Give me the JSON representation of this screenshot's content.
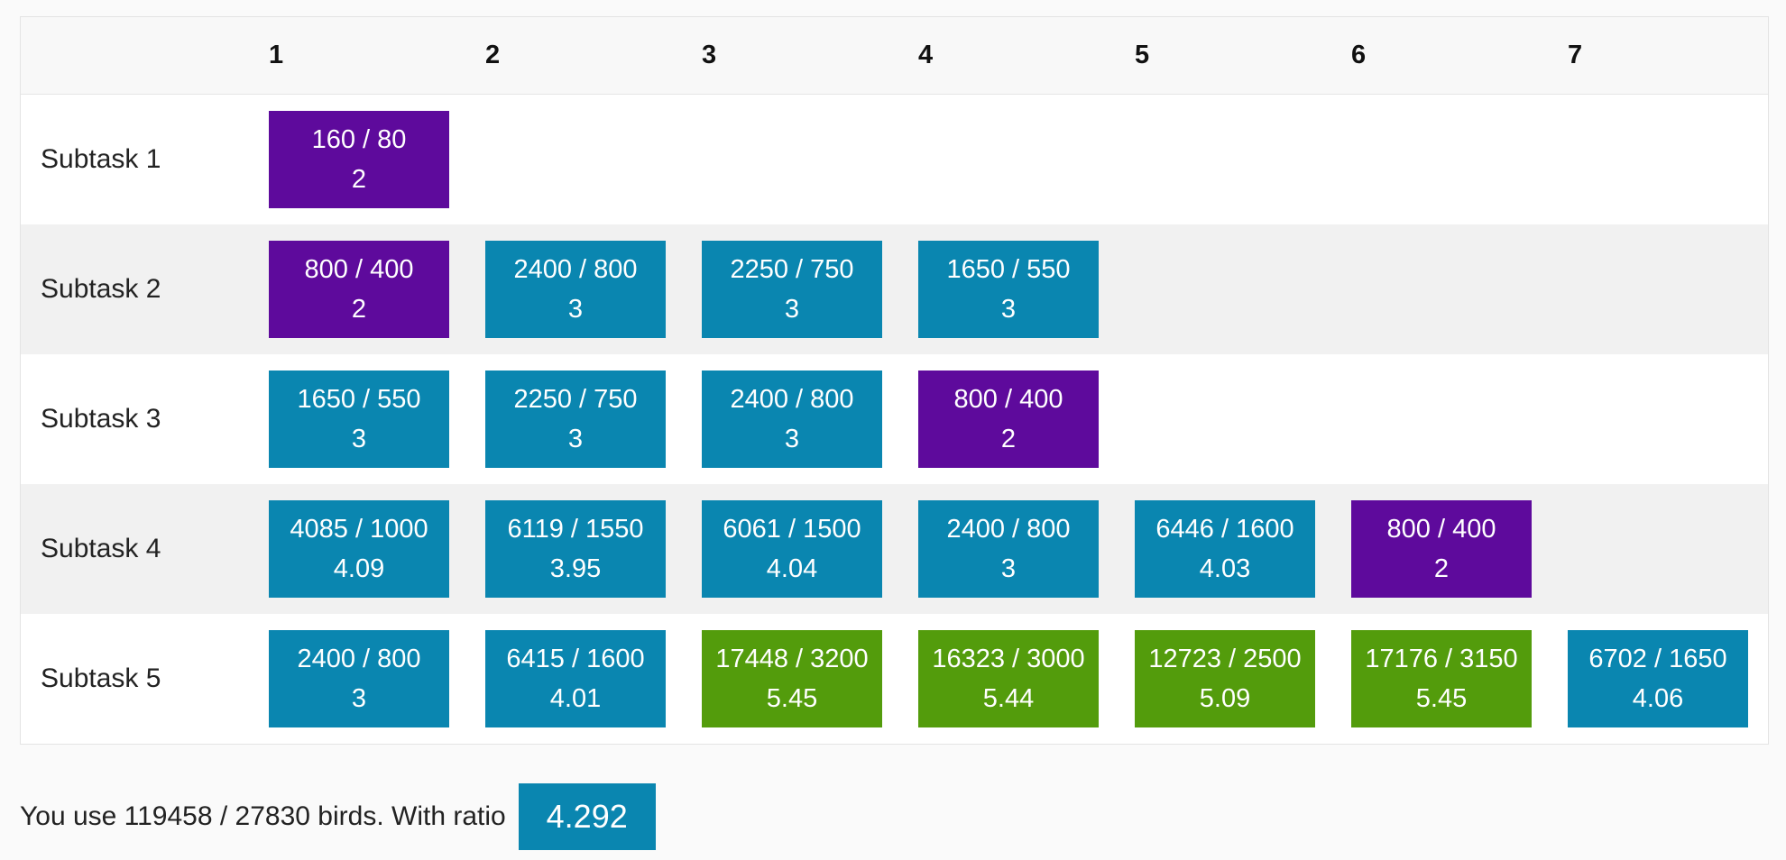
{
  "colors": {
    "purple": "#5e0a9c",
    "blue": "#0a86b0",
    "green": "#539c0c"
  },
  "columns": [
    "1",
    "2",
    "3",
    "4",
    "5",
    "6",
    "7"
  ],
  "subtasks": [
    {
      "label": "Subtask 1",
      "cells": [
        {
          "top": "160 / 80",
          "bottom": "2",
          "color": "purple"
        }
      ]
    },
    {
      "label": "Subtask 2",
      "cells": [
        {
          "top": "800 / 400",
          "bottom": "2",
          "color": "purple"
        },
        {
          "top": "2400 / 800",
          "bottom": "3",
          "color": "blue"
        },
        {
          "top": "2250 / 750",
          "bottom": "3",
          "color": "blue"
        },
        {
          "top": "1650 / 550",
          "bottom": "3",
          "color": "blue"
        }
      ]
    },
    {
      "label": "Subtask 3",
      "cells": [
        {
          "top": "1650 / 550",
          "bottom": "3",
          "color": "blue"
        },
        {
          "top": "2250 / 750",
          "bottom": "3",
          "color": "blue"
        },
        {
          "top": "2400 / 800",
          "bottom": "3",
          "color": "blue"
        },
        {
          "top": "800 / 400",
          "bottom": "2",
          "color": "purple"
        }
      ]
    },
    {
      "label": "Subtask 4",
      "cells": [
        {
          "top": "4085 / 1000",
          "bottom": "4.09",
          "color": "blue"
        },
        {
          "top": "6119 / 1550",
          "bottom": "3.95",
          "color": "blue"
        },
        {
          "top": "6061 / 1500",
          "bottom": "4.04",
          "color": "blue"
        },
        {
          "top": "2400 / 800",
          "bottom": "3",
          "color": "blue"
        },
        {
          "top": "6446 / 1600",
          "bottom": "4.03",
          "color": "blue"
        },
        {
          "top": "800 / 400",
          "bottom": "2",
          "color": "purple"
        }
      ]
    },
    {
      "label": "Subtask 5",
      "cells": [
        {
          "top": "2400 / 800",
          "bottom": "3",
          "color": "blue"
        },
        {
          "top": "6415 / 1600",
          "bottom": "4.01",
          "color": "blue"
        },
        {
          "top": "17448 / 3200",
          "bottom": "5.45",
          "color": "green"
        },
        {
          "top": "16323 / 3000",
          "bottom": "5.44",
          "color": "green"
        },
        {
          "top": "12723 / 2500",
          "bottom": "5.09",
          "color": "green"
        },
        {
          "top": "17176 / 3150",
          "bottom": "5.45",
          "color": "green"
        },
        {
          "top": "6702 / 1650",
          "bottom": "4.06",
          "color": "blue"
        }
      ]
    }
  ],
  "footer": {
    "text": "You use 119458 / 27830 birds. With ratio",
    "ratio": "4.292",
    "ratio_color": "blue"
  }
}
